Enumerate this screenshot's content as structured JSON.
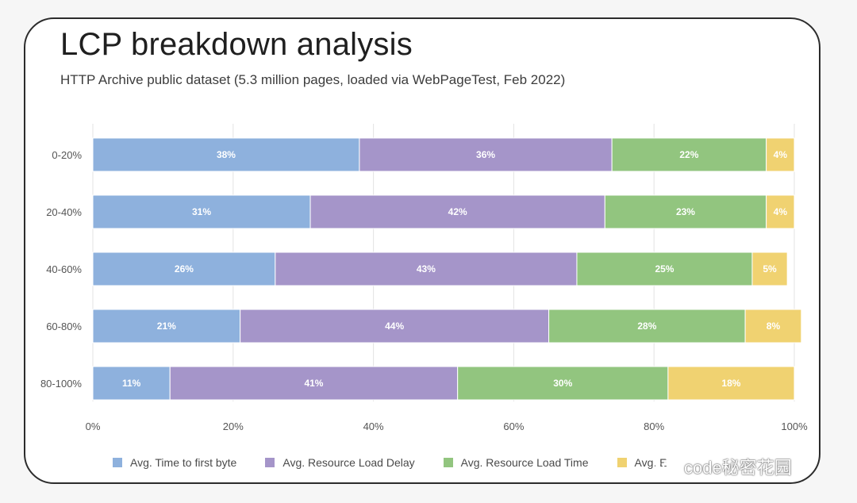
{
  "chart_data": {
    "type": "bar",
    "orientation": "horizontal",
    "stacked": true,
    "title": "LCP breakdown analysis",
    "subtitle": "HTTP Archive public dataset (5.3 million pages, loaded via WebPageTest, Feb 2022)",
    "categories": [
      "0-20%",
      "20-40%",
      "40-60%",
      "60-80%",
      "80-100%"
    ],
    "series": [
      {
        "name": "Avg. Time to first byte",
        "color": "#8eb1dd",
        "values": [
          38,
          31,
          26,
          21,
          11
        ],
        "labels": [
          "38%",
          "31%",
          "26%",
          "21%",
          "11%"
        ]
      },
      {
        "name": "Avg. Resource Load Delay",
        "color": "#a595c9",
        "values": [
          36,
          42,
          43,
          44,
          41
        ],
        "labels": [
          "36%",
          "42%",
          "43%",
          "44%",
          "41%"
        ]
      },
      {
        "name": "Avg. Resource Load Time",
        "color": "#92c57f",
        "values": [
          22,
          23,
          25,
          28,
          30
        ],
        "labels": [
          "22%",
          "23%",
          "25%",
          "28%",
          "30%"
        ]
      },
      {
        "name": "Avg. Element Render Delay",
        "color": "#f0d271",
        "values": [
          4,
          4,
          5,
          8,
          18
        ],
        "labels": [
          "4%",
          "4%",
          "5%",
          "8%",
          "18%"
        ]
      }
    ],
    "xlim": [
      0,
      100
    ],
    "x_ticks": [
      "0%",
      "20%",
      "40%",
      "60%",
      "80%",
      "100%"
    ],
    "grid": "vertical",
    "legend_position": "bottom"
  },
  "legend_visible": [
    "Avg. Time to first byte",
    "Avg. Resource Load Delay",
    "Avg. Resource Load Time",
    "Avg. E"
  ],
  "watermark": {
    "text": "code秘密花园",
    "icon": "wechat-icon"
  }
}
